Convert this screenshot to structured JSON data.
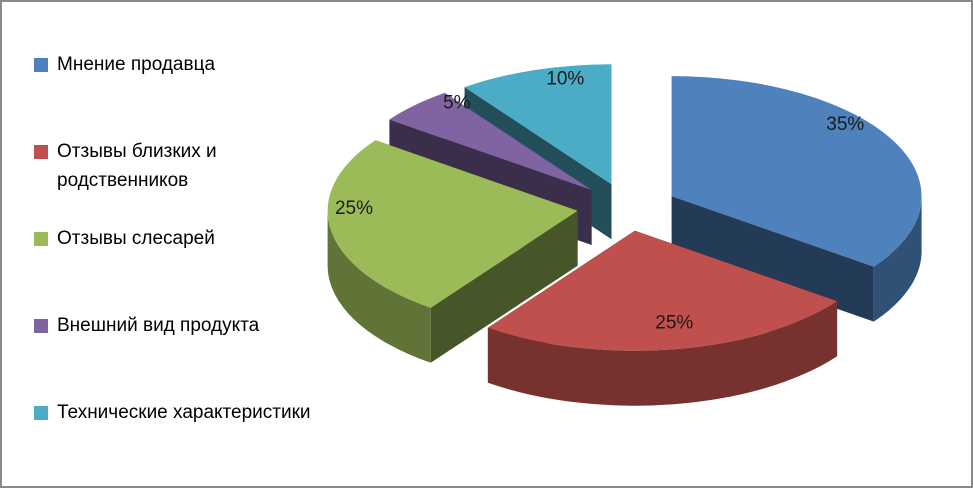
{
  "canvas": {
    "background": "#ffffff",
    "frame_border_color": "#898989"
  },
  "chart_data": {
    "type": "pie",
    "style": "3d-exploded",
    "title": "",
    "legend_position": "left",
    "direction": "clockwise",
    "start_angle_deg": 0,
    "categories": [
      "Мнение продавца",
      "Отзывы близких и родственников",
      "Отзывы слесарей",
      "Внешний вид продукта",
      "Технические характеристики"
    ],
    "values": [
      35,
      25,
      25,
      5,
      10
    ],
    "value_labels": [
      "35%",
      "25%",
      "25%",
      "5%",
      "10%"
    ],
    "colors": [
      "#4F81BD",
      "#C0504D",
      "#9BBB59",
      "#8064A2",
      "#4BACC6"
    ],
    "label_color": "#1a1a1a",
    "legend_text_color": "#000000"
  }
}
